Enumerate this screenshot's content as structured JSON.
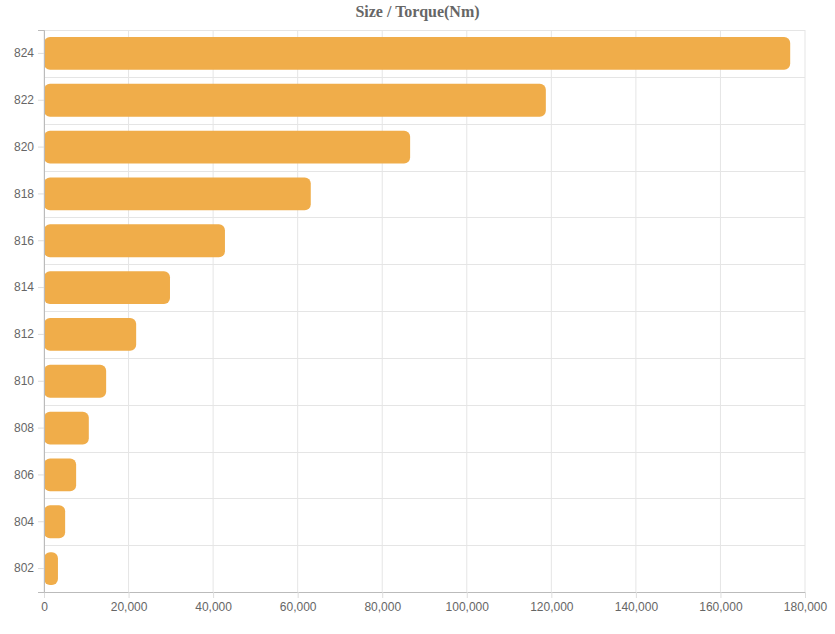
{
  "chart_data": {
    "type": "bar",
    "title": "Size / Torque(Nm)",
    "orientation": "horizontal",
    "categories": [
      "824",
      "822",
      "820",
      "818",
      "816",
      "814",
      "812",
      "810",
      "808",
      "806",
      "804",
      "802"
    ],
    "values": [
      176500,
      118700,
      86600,
      63100,
      42800,
      29800,
      21800,
      14700,
      10600,
      7600,
      5000,
      3300
    ],
    "color": "#f0ad4a",
    "xlim": [
      0,
      180000
    ],
    "xticks": [
      0,
      {
        "value": 20000,
        "label": "20,000"
      },
      {
        "value": 40000,
        "label": "40,000"
      },
      {
        "value": 60000,
        "label": "60,000"
      },
      {
        "value": 80000,
        "label": "80,000"
      },
      {
        "value": 100000,
        "label": "100,000"
      },
      {
        "value": 120000,
        "label": "120,000"
      },
      {
        "value": 140000,
        "label": "140,000"
      },
      {
        "value": 160000,
        "label": "160,000"
      },
      {
        "value": 180000,
        "label": "180,000"
      }
    ],
    "grid": true
  }
}
